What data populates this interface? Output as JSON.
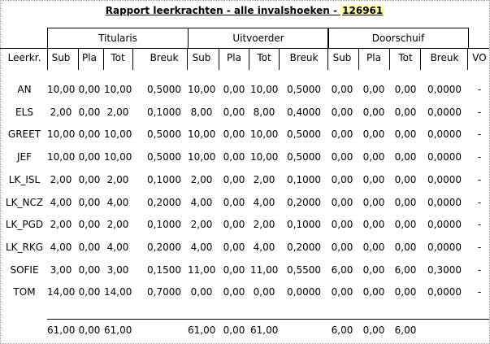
{
  "title": {
    "text": "Rapport leerkrachten - alle invalshoeken - ",
    "code": "126961"
  },
  "groups": [
    "Titularis",
    "Uitvoerder",
    "Doorschuif"
  ],
  "headers": [
    "Leerkr.",
    "Sub",
    "Pla",
    "Tot",
    "Breuk",
    "Sub",
    "Pla",
    "Tot",
    "Breuk",
    "Sub",
    "Pla",
    "Tot",
    "Breuk",
    "VO"
  ],
  "rows": [
    [
      "AN",
      "10,00",
      "0,00",
      "10,00",
      "0,5000",
      "10,00",
      "0,00",
      "10,00",
      "0,5000",
      "0,00",
      "0,00",
      "0,00",
      "0,0000",
      "-"
    ],
    [
      "ELS",
      "2,00",
      "0,00",
      "2,00",
      "0,1000",
      "8,00",
      "0,00",
      "8,00",
      "0,4000",
      "0,00",
      "0,00",
      "0,00",
      "0,0000",
      "-"
    ],
    [
      "GREET",
      "10,00",
      "0,00",
      "10,00",
      "0,5000",
      "10,00",
      "0,00",
      "10,00",
      "0,5000",
      "0,00",
      "0,00",
      "0,00",
      "0,0000",
      "-"
    ],
    [
      "JEF",
      "10,00",
      "0,00",
      "10,00",
      "0,5000",
      "10,00",
      "0,00",
      "10,00",
      "0,5000",
      "0,00",
      "0,00",
      "0,00",
      "0,0000",
      "-"
    ],
    [
      "LK_ISL",
      "2,00",
      "0,00",
      "2,00",
      "0,1000",
      "2,00",
      "0,00",
      "2,00",
      "0,1000",
      "0,00",
      "0,00",
      "0,00",
      "0,0000",
      "-"
    ],
    [
      "LK_NCZ",
      "4,00",
      "0,00",
      "4,00",
      "0,2000",
      "4,00",
      "0,00",
      "4,00",
      "0,2000",
      "0,00",
      "0,00",
      "0,00",
      "0,0000",
      "-"
    ],
    [
      "LK_PGD",
      "2,00",
      "0,00",
      "2,00",
      "0,1000",
      "2,00",
      "0,00",
      "2,00",
      "0,1000",
      "0,00",
      "0,00",
      "0,00",
      "0,0000",
      "-"
    ],
    [
      "LK_RKG",
      "4,00",
      "0,00",
      "4,00",
      "0,2000",
      "4,00",
      "0,00",
      "4,00",
      "0,2000",
      "0,00",
      "0,00",
      "0,00",
      "0,0000",
      "-"
    ],
    [
      "SOFIE",
      "3,00",
      "0,00",
      "3,00",
      "0,1500",
      "11,00",
      "0,00",
      "11,00",
      "0,5500",
      "6,00",
      "0,00",
      "6,00",
      "0,3000",
      "-"
    ],
    [
      "TOM",
      "14,00",
      "0,00",
      "14,00",
      "0,7000",
      "0,00",
      "0,00",
      "0,00",
      "0,0000",
      "0,00",
      "0,00",
      "0,00",
      "0,0000",
      "-"
    ]
  ],
  "totals": [
    "",
    "61,00",
    "0,00",
    "61,00",
    "",
    "61,00",
    "0,00",
    "61,00",
    "",
    "6,00",
    "0,00",
    "6,00",
    "",
    ""
  ]
}
